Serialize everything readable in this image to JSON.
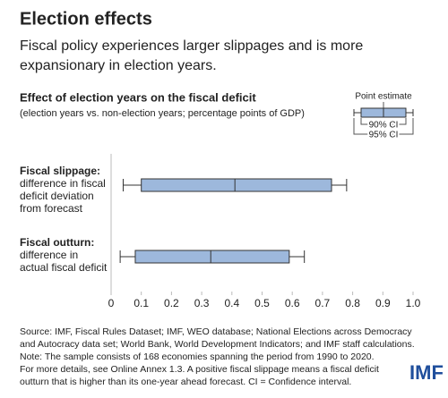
{
  "chart_data": {
    "type": "interval",
    "header_title": "Election effects",
    "header_subtitle": [
      "Fiscal policy experiences larger slippages and is more",
      "expansionary in election years."
    ],
    "title": "Effect of election years on the fiscal deficit",
    "subtitle": "(election years vs. non-election years; percentage points of GDP)",
    "legend": {
      "point": "Point estimate",
      "ci90": "90% CI",
      "ci95": "95% CI"
    },
    "categories": [
      "Fiscal slippage:",
      "Fiscal outturn:"
    ],
    "category_descriptions": [
      [
        "difference in fiscal",
        "deficit deviation",
        "from forecast"
      ],
      [
        "difference in",
        "actual fiscal deficit"
      ]
    ],
    "point": [
      0.41,
      0.33
    ],
    "ci90": [
      [
        0.1,
        0.73
      ],
      [
        0.08,
        0.59
      ]
    ],
    "ci95": [
      [
        0.04,
        0.78
      ],
      [
        0.03,
        0.64
      ]
    ],
    "color": "#9db8dc",
    "xlim": [
      0,
      1
    ],
    "xticks": [
      0,
      0.1,
      0.2,
      0.3,
      0.4,
      0.5,
      0.6,
      0.7,
      0.8,
      0.9,
      {
        "value": 1,
        "label": "1.0"
      }
    ],
    "source": [
      "Source: IMF, Fiscal Rules Dataset; IMF, WEO database; National Elections across Democracy",
      "and Autocracy data set; World Bank, World Development Indicators; and IMF staff calculations.",
      "Note: The sample consists of 168 economies spanning the period from 1990 to 2020.",
      "For more details, see Online Annex 1.3. A positive fiscal slippage means a fiscal deficit",
      "outturn that is higher than its one-year ahead forecast. CI = Confidence interval."
    ],
    "logo": "IMF"
  }
}
